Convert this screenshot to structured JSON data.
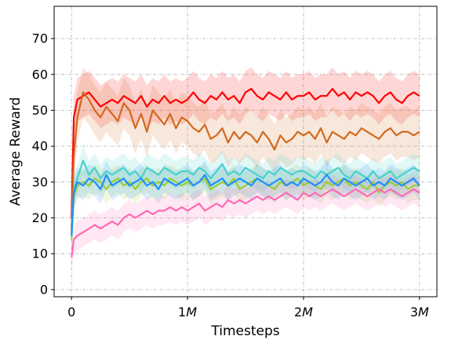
{
  "chart_data": {
    "type": "line",
    "title": "",
    "xlabel": "Timesteps",
    "ylabel": "Average Reward",
    "xlim": [
      -0.15,
      3.15
    ],
    "ylim": [
      -2,
      79
    ],
    "xticks": [
      0,
      1,
      2,
      3
    ],
    "xtick_labels": [
      "0",
      "1M",
      "2M",
      "3M"
    ],
    "yticks": [
      0,
      10,
      20,
      30,
      40,
      50,
      60,
      70
    ],
    "ytick_labels": [
      "0",
      "10",
      "20",
      "30",
      "40",
      "50",
      "60",
      "70"
    ],
    "grid": true,
    "legend": "none",
    "series": [
      {
        "color": "#ff0000",
        "band": 6,
        "x": [
          0,
          0.02,
          0.05,
          0.1,
          0.15,
          0.2,
          0.25,
          0.3,
          0.35,
          0.4,
          0.45,
          0.5,
          0.55,
          0.6,
          0.65,
          0.7,
          0.75,
          0.8,
          0.85,
          0.9,
          0.95,
          1.0,
          1.05,
          1.1,
          1.15,
          1.2,
          1.25,
          1.3,
          1.35,
          1.4,
          1.45,
          1.5,
          1.55,
          1.6,
          1.65,
          1.7,
          1.75,
          1.8,
          1.85,
          1.9,
          1.95,
          2.0,
          2.05,
          2.1,
          2.15,
          2.2,
          2.25,
          2.3,
          2.35,
          2.4,
          2.45,
          2.5,
          2.55,
          2.6,
          2.65,
          2.7,
          2.75,
          2.8,
          2.85,
          2.9,
          2.95,
          3.0
        ],
        "y": [
          20,
          48,
          53,
          54,
          55,
          53,
          51,
          52,
          53,
          52,
          54,
          53,
          52,
          54,
          51,
          53,
          52,
          54,
          52,
          53,
          52,
          53,
          55,
          53,
          52,
          54,
          53,
          55,
          53,
          54,
          52,
          55,
          56,
          54,
          53,
          55,
          54,
          53,
          55,
          53,
          54,
          54,
          55,
          53,
          54,
          54,
          56,
          54,
          55,
          53,
          55,
          54,
          55,
          54,
          52,
          54,
          55,
          53,
          52,
          54,
          55,
          54
        ]
      },
      {
        "color": "#d2691e",
        "band": 7,
        "x": [
          0,
          0.02,
          0.05,
          0.1,
          0.15,
          0.2,
          0.25,
          0.3,
          0.35,
          0.4,
          0.45,
          0.5,
          0.55,
          0.6,
          0.65,
          0.7,
          0.75,
          0.8,
          0.85,
          0.9,
          0.95,
          1.0,
          1.05,
          1.1,
          1.15,
          1.2,
          1.25,
          1.3,
          1.35,
          1.4,
          1.45,
          1.5,
          1.55,
          1.6,
          1.65,
          1.7,
          1.75,
          1.8,
          1.85,
          1.9,
          1.95,
          2.0,
          2.05,
          2.1,
          2.15,
          2.2,
          2.25,
          2.3,
          2.35,
          2.4,
          2.45,
          2.5,
          2.55,
          2.6,
          2.65,
          2.7,
          2.75,
          2.8,
          2.85,
          2.9,
          2.95,
          3.0
        ],
        "y": [
          17,
          37,
          48,
          55,
          53,
          50,
          48,
          51,
          49,
          47,
          52,
          50,
          45,
          49,
          44,
          50,
          48,
          46,
          49,
          45,
          48,
          47,
          45,
          44,
          46,
          42,
          43,
          45,
          41,
          44,
          42,
          44,
          43,
          41,
          44,
          42,
          39,
          43,
          41,
          42,
          44,
          43,
          44,
          42,
          45,
          41,
          44,
          43,
          42,
          44,
          43,
          45,
          44,
          43,
          42,
          44,
          45,
          43,
          44,
          44,
          43,
          44
        ]
      },
      {
        "color": "#48d1cc",
        "band": 4,
        "x": [
          0,
          0.02,
          0.05,
          0.1,
          0.15,
          0.2,
          0.25,
          0.3,
          0.35,
          0.4,
          0.45,
          0.5,
          0.55,
          0.6,
          0.65,
          0.7,
          0.75,
          0.8,
          0.85,
          0.9,
          0.95,
          1.0,
          1.05,
          1.1,
          1.15,
          1.2,
          1.25,
          1.3,
          1.35,
          1.4,
          1.45,
          1.5,
          1.55,
          1.6,
          1.65,
          1.7,
          1.75,
          1.8,
          1.85,
          1.9,
          1.95,
          2.0,
          2.05,
          2.1,
          2.15,
          2.2,
          2.25,
          2.3,
          2.35,
          2.4,
          2.45,
          2.5,
          2.55,
          2.6,
          2.65,
          2.7,
          2.75,
          2.8,
          2.85,
          2.9,
          2.95,
          3.0
        ],
        "y": [
          16,
          28,
          31,
          36,
          32,
          34,
          31,
          33,
          32,
          33,
          34,
          32,
          33,
          31,
          34,
          33,
          32,
          34,
          33,
          32,
          33,
          33,
          32,
          34,
          33,
          31,
          33,
          35,
          32,
          33,
          32,
          34,
          33,
          32,
          31,
          33,
          32,
          34,
          33,
          32,
          33,
          33,
          32,
          31,
          33,
          32,
          33,
          34,
          32,
          31,
          33,
          32,
          31,
          33,
          31,
          32,
          33,
          31,
          32,
          33,
          34,
          33
        ]
      },
      {
        "color": "#9acd32",
        "band": 4,
        "x": [
          0,
          0.02,
          0.05,
          0.1,
          0.15,
          0.2,
          0.25,
          0.3,
          0.35,
          0.4,
          0.45,
          0.5,
          0.55,
          0.6,
          0.65,
          0.7,
          0.75,
          0.8,
          0.85,
          0.9,
          0.95,
          1.0,
          1.05,
          1.1,
          1.15,
          1.2,
          1.25,
          1.3,
          1.35,
          1.4,
          1.45,
          1.5,
          1.55,
          1.6,
          1.65,
          1.7,
          1.75,
          1.8,
          1.85,
          1.9,
          1.95,
          2.0,
          2.05,
          2.1,
          2.15,
          2.2,
          2.25,
          2.3,
          2.35,
          2.4,
          2.45,
          2.5,
          2.55,
          2.6,
          2.65,
          2.7,
          2.75,
          2.8,
          2.85,
          2.9,
          2.95,
          3.0
        ],
        "y": [
          14,
          26,
          29,
          30,
          29,
          31,
          30,
          28,
          30,
          31,
          29,
          30,
          28,
          30,
          31,
          29,
          30,
          29,
          31,
          30,
          29,
          30,
          29,
          30,
          31,
          28,
          29,
          30,
          29,
          31,
          28,
          29,
          30,
          31,
          30,
          29,
          28,
          30,
          29,
          30,
          31,
          29,
          30,
          29,
          28,
          30,
          29,
          30,
          31,
          29,
          30,
          29,
          28,
          30,
          27,
          29,
          30,
          29,
          30,
          28,
          29,
          29
        ]
      },
      {
        "color": "#1e90ff",
        "band": 4,
        "x": [
          0,
          0.02,
          0.05,
          0.1,
          0.15,
          0.2,
          0.25,
          0.3,
          0.35,
          0.4,
          0.45,
          0.5,
          0.55,
          0.6,
          0.65,
          0.7,
          0.75,
          0.8,
          0.85,
          0.9,
          0.95,
          1.0,
          1.05,
          1.1,
          1.15,
          1.2,
          1.25,
          1.3,
          1.35,
          1.4,
          1.45,
          1.5,
          1.55,
          1.6,
          1.65,
          1.7,
          1.75,
          1.8,
          1.85,
          1.9,
          1.95,
          2.0,
          2.05,
          2.1,
          2.15,
          2.2,
          2.25,
          2.3,
          2.35,
          2.4,
          2.45,
          2.5,
          2.55,
          2.6,
          2.65,
          2.7,
          2.75,
          2.8,
          2.85,
          2.9,
          2.95,
          3.0
        ],
        "y": [
          15,
          27,
          30,
          29,
          31,
          30,
          28,
          32,
          29,
          30,
          31,
          29,
          30,
          31,
          29,
          30,
          28,
          31,
          30,
          29,
          30,
          31,
          29,
          30,
          32,
          29,
          30,
          31,
          29,
          30,
          31,
          30,
          29,
          31,
          30,
          29,
          30,
          31,
          29,
          30,
          29,
          31,
          30,
          29,
          30,
          32,
          30,
          29,
          31,
          30,
          29,
          30,
          31,
          29,
          30,
          29,
          31,
          30,
          29,
          30,
          31,
          29
        ]
      },
      {
        "color": "#ff69b4",
        "band": 4,
        "x": [
          0,
          0.02,
          0.05,
          0.1,
          0.15,
          0.2,
          0.25,
          0.3,
          0.35,
          0.4,
          0.45,
          0.5,
          0.55,
          0.6,
          0.65,
          0.7,
          0.75,
          0.8,
          0.85,
          0.9,
          0.95,
          1.0,
          1.05,
          1.1,
          1.15,
          1.2,
          1.25,
          1.3,
          1.35,
          1.4,
          1.45,
          1.5,
          1.55,
          1.6,
          1.65,
          1.7,
          1.75,
          1.8,
          1.85,
          1.9,
          1.95,
          2.0,
          2.05,
          2.1,
          2.15,
          2.2,
          2.25,
          2.3,
          2.35,
          2.4,
          2.45,
          2.5,
          2.55,
          2.6,
          2.65,
          2.7,
          2.75,
          2.8,
          2.85,
          2.9,
          2.95,
          3.0
        ],
        "y": [
          9,
          14,
          15,
          16,
          17,
          18,
          17,
          18,
          19,
          18,
          20,
          21,
          20,
          21,
          22,
          21,
          22,
          22,
          23,
          22,
          23,
          22,
          23,
          24,
          22,
          23,
          24,
          23,
          25,
          24,
          25,
          24,
          25,
          26,
          25,
          26,
          25,
          26,
          27,
          26,
          25,
          27,
          26,
          27,
          26,
          27,
          28,
          27,
          26,
          27,
          28,
          27,
          26,
          27,
          28,
          27,
          28,
          27,
          26,
          27,
          28,
          27
        ]
      }
    ]
  }
}
